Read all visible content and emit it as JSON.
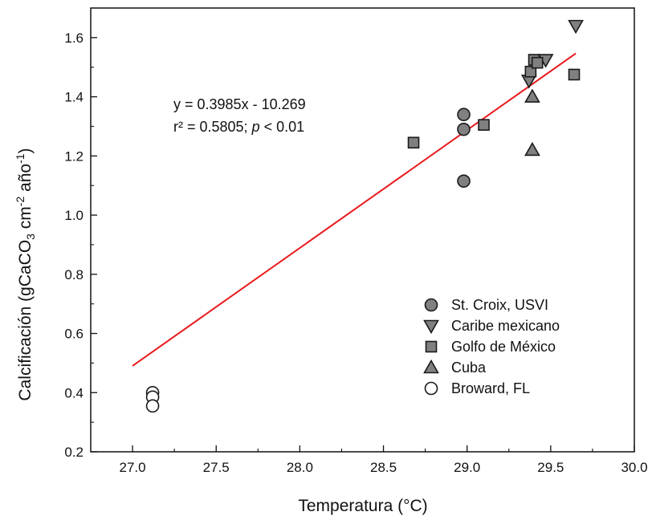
{
  "chart_data": {
    "type": "scatter",
    "xlabel": "Temperatura (°C)",
    "ylabel": {
      "main": "Calcificación (gCaCO",
      "sub": "3",
      "mid": " cm",
      "sup1": "-2",
      "mid2": " año",
      "sup2": "-1",
      "end": ")"
    },
    "xlim": [
      26.75,
      30.0
    ],
    "ylim": [
      0.2,
      1.7
    ],
    "xticks": [
      "27.0",
      "27.5",
      "28.0",
      "28.5",
      "29.0",
      "29.5",
      "30.0"
    ],
    "yticks": [
      "0.2",
      "0.4",
      "0.6",
      "0.8",
      "1.0",
      "1.2",
      "1.4",
      "1.6"
    ],
    "grid": false,
    "legend_position": "bottom-right",
    "annotation": {
      "equation": "y = 0.3985x - 10.269",
      "r2_prefix": "r² = 0.5805; ",
      "p_symbol": "p",
      "p_suffix": " < 0.01"
    },
    "regression": {
      "slope": 0.3985,
      "intercept": -10.269,
      "x_range": [
        27.0,
        29.65
      ],
      "color": "#e8191c"
    },
    "series": [
      {
        "name": "St. Croix, USVI",
        "marker": "circle",
        "fill": "#808080",
        "points": [
          [
            28.98,
            1.34
          ],
          [
            28.98,
            1.29
          ],
          [
            28.98,
            1.115
          ]
        ]
      },
      {
        "name": "Caribe mexicano",
        "marker": "triangle-down",
        "fill": "#808080",
        "points": [
          [
            29.65,
            1.64
          ],
          [
            29.47,
            1.525
          ],
          [
            29.37,
            1.455
          ]
        ]
      },
      {
        "name": "Golfo de México",
        "marker": "square",
        "fill": "#808080",
        "points": [
          [
            28.68,
            1.245
          ],
          [
            29.1,
            1.305
          ],
          [
            29.38,
            1.485
          ],
          [
            29.4,
            1.525
          ],
          [
            29.42,
            1.515
          ],
          [
            29.64,
            1.475
          ]
        ]
      },
      {
        "name": "Cuba",
        "marker": "triangle-up",
        "fill": "#808080",
        "points": [
          [
            29.39,
            1.4
          ],
          [
            29.39,
            1.22
          ]
        ]
      },
      {
        "name": "Broward, FL",
        "marker": "circle",
        "fill": "#ffffff",
        "points": [
          [
            27.12,
            0.4
          ],
          [
            27.12,
            0.385
          ],
          [
            27.12,
            0.355
          ]
        ]
      }
    ]
  }
}
